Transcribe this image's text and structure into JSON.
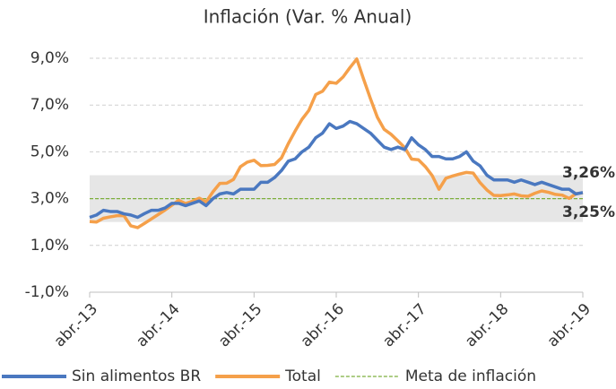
{
  "chart_data": {
    "type": "line",
    "title": "Inflación (Var. % Anual)",
    "categories": [
      "abr.-13",
      null,
      null,
      null,
      null,
      null,
      null,
      null,
      null,
      null,
      null,
      null,
      "abr.-14",
      null,
      null,
      null,
      null,
      null,
      null,
      null,
      null,
      null,
      null,
      null,
      "abr.-15",
      null,
      null,
      null,
      null,
      null,
      null,
      null,
      null,
      null,
      null,
      null,
      "abr.-16",
      null,
      null,
      null,
      null,
      null,
      null,
      null,
      null,
      null,
      null,
      null,
      "abr.-17",
      null,
      null,
      null,
      null,
      null,
      null,
      null,
      null,
      null,
      null,
      null,
      "abr.-18",
      null,
      null,
      null,
      null,
      null,
      null,
      null,
      null,
      null,
      null,
      null,
      "abr.-19"
    ],
    "series": [
      {
        "name": "Sin alimentos BR",
        "color": "#4a78c0",
        "values": [
          2.2,
          2.3,
          2.5,
          2.45,
          2.45,
          2.35,
          2.3,
          2.2,
          2.36,
          2.5,
          2.5,
          2.6,
          2.8,
          2.8,
          2.7,
          2.8,
          2.9,
          2.7,
          3.0,
          3.2,
          3.26,
          3.2,
          3.4,
          3.4,
          3.4,
          3.7,
          3.7,
          3.9,
          4.2,
          4.6,
          4.7,
          5.0,
          5.2,
          5.6,
          5.8,
          6.2,
          6.0,
          6.1,
          6.3,
          6.2,
          6.0,
          5.8,
          5.5,
          5.2,
          5.1,
          5.2,
          5.1,
          5.6,
          5.3,
          5.1,
          4.8,
          4.8,
          4.7,
          4.7,
          4.8,
          5.0,
          4.6,
          4.4,
          4.0,
          3.8,
          3.8,
          3.8,
          3.7,
          3.8,
          3.7,
          3.6,
          3.7,
          3.6,
          3.5,
          3.4,
          3.4,
          3.2,
          3.26
        ]
      },
      {
        "name": "Total",
        "color": "#f5a04a",
        "values": [
          2.02,
          2.0,
          2.16,
          2.22,
          2.27,
          2.27,
          1.84,
          1.76,
          1.94,
          2.13,
          2.32,
          2.51,
          2.72,
          2.93,
          2.79,
          2.89,
          3.02,
          2.86,
          3.29,
          3.65,
          3.66,
          3.82,
          4.36,
          4.56,
          4.64,
          4.41,
          4.42,
          4.46,
          4.74,
          5.35,
          5.89,
          6.39,
          6.77,
          7.45,
          7.59,
          7.98,
          7.93,
          8.2,
          8.6,
          8.97,
          8.1,
          7.27,
          6.48,
          5.96,
          5.75,
          5.47,
          5.18,
          4.69,
          4.66,
          4.37,
          3.99,
          3.4,
          3.87,
          3.97,
          4.05,
          4.12,
          4.09,
          3.68,
          3.37,
          3.14,
          3.13,
          3.16,
          3.2,
          3.12,
          3.1,
          3.23,
          3.33,
          3.27,
          3.18,
          3.15,
          3.01,
          3.21,
          3.25
        ]
      },
      {
        "name": "Meta de inflación",
        "color": "#7caf3c",
        "dashed": true,
        "values": [
          3,
          3,
          3,
          3,
          3,
          3,
          3,
          3,
          3,
          3,
          3,
          3,
          3,
          3,
          3,
          3,
          3,
          3,
          3,
          3,
          3,
          3,
          3,
          3,
          3,
          3,
          3,
          3,
          3,
          3,
          3,
          3,
          3,
          3,
          3,
          3,
          3,
          3,
          3,
          3,
          3,
          3,
          3,
          3,
          3,
          3,
          3,
          3,
          3,
          3,
          3,
          3,
          3,
          3,
          3,
          3,
          3,
          3,
          3,
          3,
          3,
          3,
          3,
          3,
          3,
          3,
          3,
          3,
          3,
          3,
          3,
          3,
          3
        ]
      }
    ],
    "band": [
      2,
      4
    ],
    "band_color": "#e6e6e6",
    "annotations": [
      {
        "text": "3,26%",
        "series": 0
      },
      {
        "text": "3,25%",
        "series": 1
      }
    ],
    "ylim": [
      -1,
      9
    ],
    "yticks": [
      {
        "value": -1,
        "label": "-1,0%"
      },
      {
        "value": 1,
        "label": "1,0%"
      },
      {
        "value": 3,
        "label": "3,0%"
      },
      {
        "value": 5,
        "label": "5,0%"
      },
      {
        "value": 7,
        "label": "7,0%"
      },
      {
        "value": 9,
        "label": "9,0%"
      }
    ],
    "grid": true,
    "legend": "bottom"
  }
}
